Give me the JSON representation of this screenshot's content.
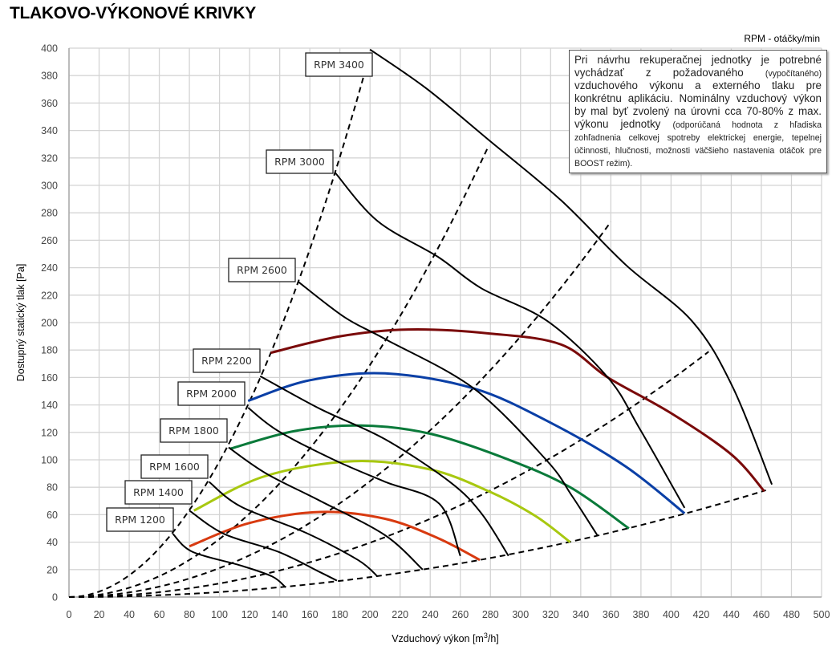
{
  "title": "TLAKOVO-VÝKONOVÉ KRIVKY",
  "rpm_note": "RPM - otáčky/min",
  "info_box": {
    "main": "Pri návrhu rekuperačnej jednotky je potrebné vychádzať z požadovaného",
    "paren1": "(vypočítaného)",
    "main2": "vzduchového výkonu a externého tlaku pre konkrétnu aplikáciu. Nominálny vzduchový výkon by mal byť zvolený na úrovni cca 70-80% z max. výkonu jednotky",
    "paren2": "(odporúčaná hodnota z hľadiska zohľadnenia celkovej spotreby elektrickej energie, tepelnej účinnosti, hlučnosti, možnosti väčšieho nastavenia otáčok pre BOOST režim)."
  },
  "chart_data": {
    "type": "line",
    "title": "TLAKOVO-VÝKONOVÉ KRIVKY",
    "xlabel": "Vzduchový výkon [m³/h]",
    "ylabel": "Dostupný statický tlak [Pa]",
    "xlim": [
      0,
      500
    ],
    "ylim": [
      0,
      400
    ],
    "xticks": [
      "0",
      "20",
      "40",
      "60",
      "80",
      "100",
      "120",
      "140",
      "160",
      "180",
      "200",
      "220",
      "240",
      "260",
      "280",
      "300",
      "320",
      "340",
      "360",
      "380",
      "400",
      "420",
      "440",
      "460",
      "480",
      "500"
    ],
    "yticks": [
      "0",
      "20",
      "40",
      "60",
      "80",
      "100",
      "120",
      "140",
      "160",
      "180",
      "200",
      "220",
      "240",
      "260",
      "280",
      "300",
      "320",
      "340",
      "360",
      "380",
      "400"
    ],
    "grid": true,
    "rpm_curves": [
      {
        "name": "RPM 1200",
        "points": [
          [
            69,
            46
          ],
          [
            82,
            33
          ],
          [
            114,
            23
          ],
          [
            135,
            15
          ],
          [
            144,
            7
          ]
        ]
      },
      {
        "name": "RPM 1400",
        "points": [
          [
            80,
            63
          ],
          [
            103,
            46
          ],
          [
            139,
            33
          ],
          [
            167,
            18
          ],
          [
            178,
            12
          ]
        ]
      },
      {
        "name": "RPM 1600",
        "points": [
          [
            93,
            84
          ],
          [
            114,
            66
          ],
          [
            157,
            47
          ],
          [
            192,
            27
          ],
          [
            205,
            15
          ]
        ]
      },
      {
        "name": "RPM 1800",
        "points": [
          [
            106,
            109
          ],
          [
            131,
            90
          ],
          [
            167,
            70
          ],
          [
            210,
            45
          ],
          [
            235,
            20
          ]
        ]
      },
      {
        "name": "RPM 2000",
        "points": [
          [
            119,
            138
          ],
          [
            139,
            121
          ],
          [
            176,
            100
          ],
          [
            210,
            84
          ],
          [
            246,
            68
          ],
          [
            260,
            30
          ]
        ]
      },
      {
        "name": "RPM 2200",
        "points": [
          [
            127,
            161
          ],
          [
            167,
            137
          ],
          [
            210,
            115
          ],
          [
            253,
            84
          ],
          [
            274,
            61
          ],
          [
            292,
            30
          ]
        ]
      },
      {
        "name": "RPM 2600",
        "points": [
          [
            152,
            230
          ],
          [
            183,
            204
          ],
          [
            210,
            188
          ],
          [
            269,
            152
          ],
          [
            317,
            100
          ],
          [
            334,
            74
          ],
          [
            351,
            45
          ]
        ]
      },
      {
        "name": "RPM 3000",
        "points": [
          [
            177,
            309
          ],
          [
            205,
            274
          ],
          [
            245,
            248
          ],
          [
            274,
            225
          ],
          [
            318,
            201
          ],
          [
            358,
            160
          ],
          [
            379,
            123
          ],
          [
            409,
            65
          ]
        ]
      },
      {
        "name": "RPM 3400",
        "points": [
          [
            200,
            399
          ],
          [
            237,
            371
          ],
          [
            279,
            333
          ],
          [
            327,
            289
          ],
          [
            370,
            242
          ],
          [
            414,
            201
          ],
          [
            441,
            153
          ],
          [
            467,
            82
          ]
        ]
      }
    ],
    "colored_curves": [
      {
        "color": "#7a0a0a",
        "points": [
          [
            134,
            178
          ],
          [
            180,
            190
          ],
          [
            226,
            195
          ],
          [
            280,
            192
          ],
          [
            327,
            184
          ],
          [
            358,
            160
          ],
          [
            400,
            134
          ],
          [
            440,
            104
          ],
          [
            462,
            77
          ]
        ]
      },
      {
        "color": "#0a3fa6",
        "points": [
          [
            119,
            143
          ],
          [
            160,
            158
          ],
          [
            210,
            163
          ],
          [
            269,
            152
          ],
          [
            320,
            127
          ],
          [
            370,
            95
          ],
          [
            409,
            61
          ]
        ]
      },
      {
        "color": "#0a7a3a",
        "points": [
          [
            107,
            108
          ],
          [
            150,
            121
          ],
          [
            194,
            125
          ],
          [
            240,
            119
          ],
          [
            290,
            101
          ],
          [
            333,
            80
          ],
          [
            372,
            50
          ]
        ]
      },
      {
        "color": "#a8c810",
        "points": [
          [
            83,
            63
          ],
          [
            130,
            88
          ],
          [
            189,
            99
          ],
          [
            240,
            93
          ],
          [
            279,
            77
          ],
          [
            310,
            59
          ],
          [
            333,
            40
          ]
        ]
      },
      {
        "color": "#d83a10",
        "points": [
          [
            80,
            37
          ],
          [
            120,
            54
          ],
          [
            167,
            62
          ],
          [
            210,
            57
          ],
          [
            245,
            43
          ],
          [
            273,
            27
          ]
        ]
      }
    ],
    "system_curves": [
      {
        "k": 0.0099,
        "xmax": 197
      },
      {
        "k": 0.00423,
        "xmax": 278
      },
      {
        "k": 0.00211,
        "xmax": 360
      },
      {
        "k": 0.00099,
        "xmax": 425
      },
      {
        "k": 0.000363,
        "xmax": 463
      }
    ]
  }
}
